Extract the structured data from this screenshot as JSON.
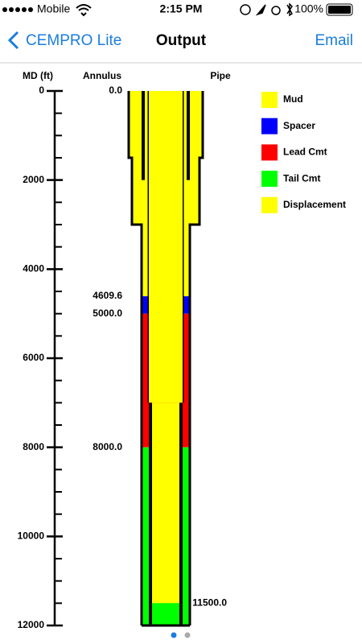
{
  "status_bar": {
    "carrier": "Mobile",
    "time": "2:15 PM",
    "battery": "100%"
  },
  "nav": {
    "back": "CEMPRO Lite",
    "title": "Output",
    "action": "Email"
  },
  "chart_data": {
    "type": "wellbore",
    "axis_label": "MD (ft)",
    "annulus_label": "Annulus",
    "pipe_label": "Pipe",
    "ylim": [
      0,
      12000
    ],
    "yticks": [
      0,
      2000,
      4000,
      6000,
      8000,
      10000,
      12000
    ],
    "minor_yticks": [
      500,
      1000,
      1500,
      2500,
      3000,
      3500,
      4500,
      5000,
      5500,
      6500,
      7000,
      7500,
      8500,
      9000,
      9500,
      10500,
      11000,
      11500
    ],
    "series": [
      {
        "name": "Mud",
        "color": "#ffff00"
      },
      {
        "name": "Spacer",
        "color": "#0000ff"
      },
      {
        "name": "Lead Cmt",
        "color": "#ff0000"
      },
      {
        "name": "Tail Cmt",
        "color": "#00ff00"
      },
      {
        "name": "Displacement",
        "color": "#ffff00"
      }
    ],
    "annulus": [
      {
        "fluid": 0,
        "top": 0,
        "bottom": 4609.6,
        "label": "0.0"
      },
      {
        "fluid": 1,
        "top": 4609.6,
        "bottom": 5000,
        "label": "4609.6"
      },
      {
        "fluid": 2,
        "top": 5000,
        "bottom": 8000,
        "label": "5000.0"
      },
      {
        "fluid": 3,
        "top": 8000,
        "bottom": 12000,
        "label": "8000.0"
      }
    ],
    "pipe": [
      {
        "fluid": 4,
        "top": 0,
        "bottom": 11500
      },
      {
        "fluid": 3,
        "top": 11500,
        "bottom": 12000,
        "label": "11500.0"
      }
    ],
    "hole": [
      {
        "top": 0,
        "bottom": 1500
      },
      {
        "top": 1500,
        "bottom": 3000
      },
      {
        "top": 3000,
        "bottom": 12000
      }
    ],
    "casing": [
      {
        "top": 0,
        "bottom": 2000
      },
      {
        "top": 0,
        "bottom": 7000
      },
      {
        "top": 7000,
        "bottom": 12000
      }
    ]
  }
}
